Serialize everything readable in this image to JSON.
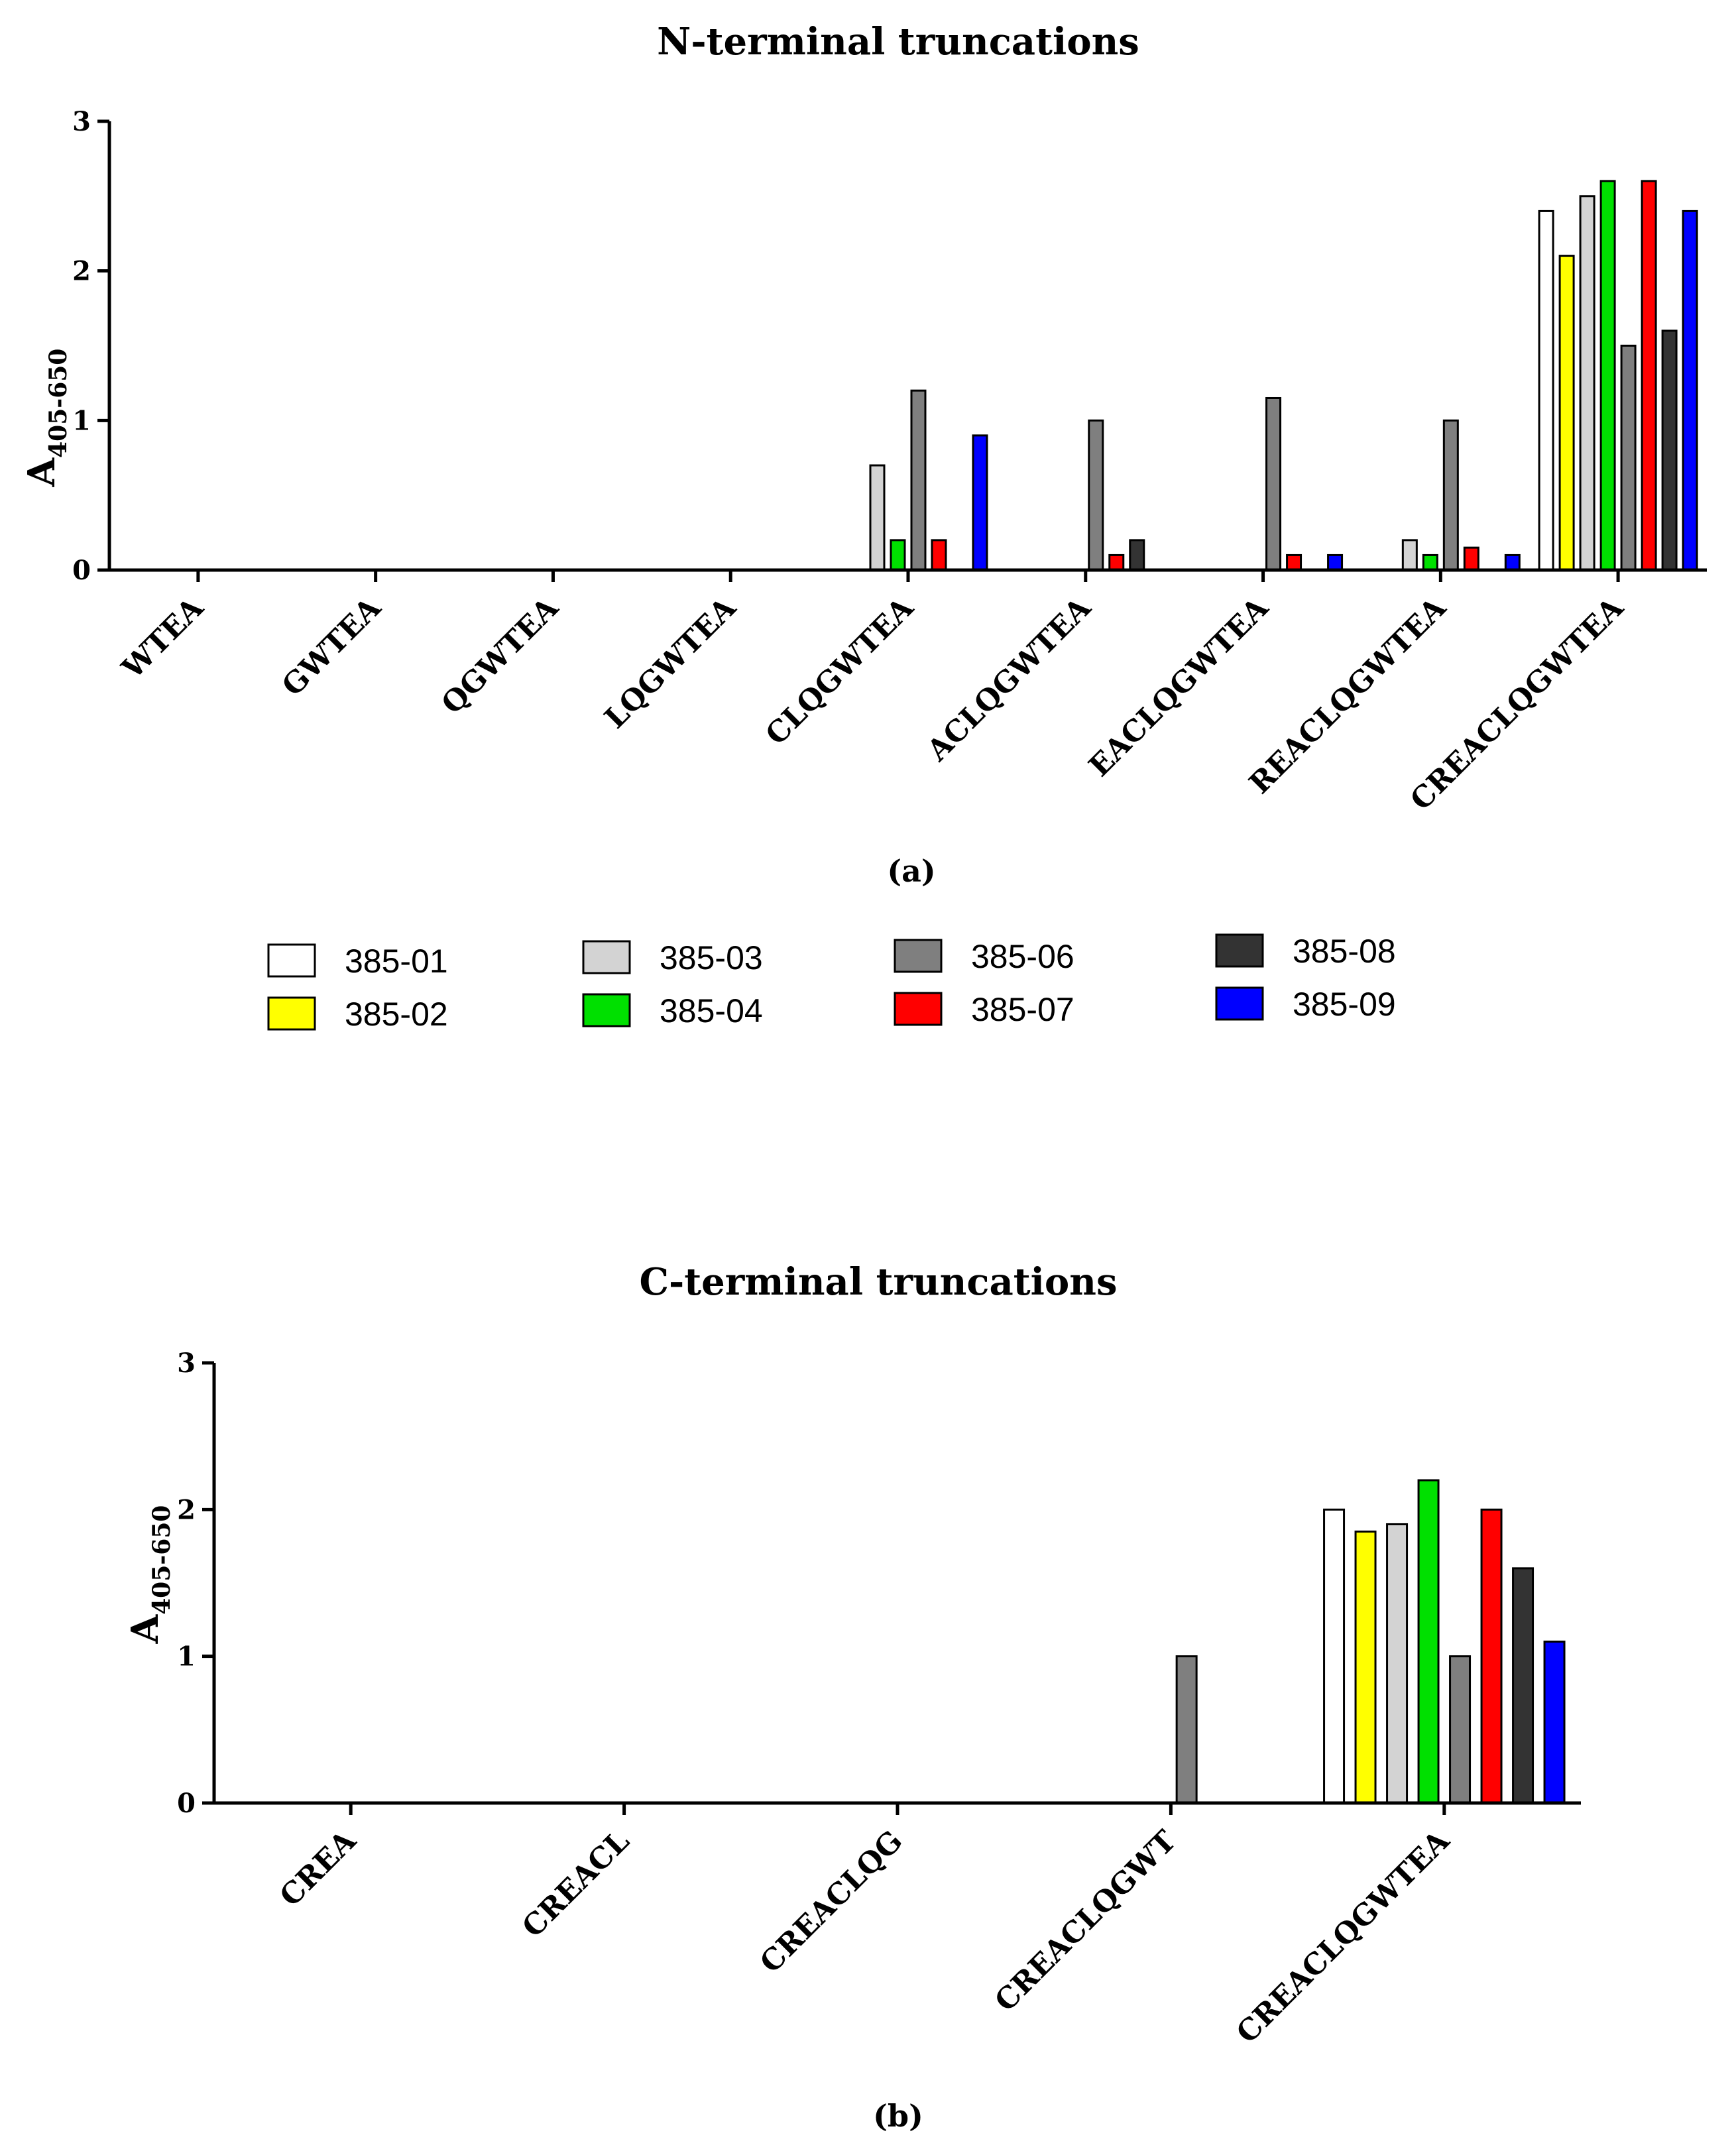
{
  "chart_data": [
    {
      "type": "bar",
      "panel_label": "(a)",
      "title": "N-terminal truncations",
      "ylabel": "A",
      "ylabel_subscript": "405-650",
      "ylim": [
        0,
        3
      ],
      "yticks": [
        "0",
        "1",
        "2",
        "3"
      ],
      "categories": [
        "WTEA",
        "GWTEA",
        "QGWTEA",
        "LQGWTEA",
        "CLQGWTEA",
        "ACLQGWTEA",
        "EACLQGWTEA",
        "REACLQGWTEA",
        "CREACLQGWTEA"
      ],
      "series": [
        {
          "name": "385-01",
          "color": "#ffffff",
          "values": [
            0,
            0,
            0,
            0,
            0,
            0,
            0,
            0,
            2.4
          ]
        },
        {
          "name": "385-02",
          "color": "#ffff00",
          "values": [
            0,
            0,
            0,
            0,
            0,
            0,
            0,
            0,
            2.1
          ]
        },
        {
          "name": "385-03",
          "color": "#d3d3d3",
          "values": [
            0,
            0,
            0,
            0,
            0.7,
            0,
            0,
            0.2,
            2.5
          ]
        },
        {
          "name": "385-04",
          "color": "#00e000",
          "values": [
            0,
            0,
            0,
            0,
            0.2,
            0,
            0,
            0.1,
            2.6
          ]
        },
        {
          "name": "385-06",
          "color": "#7f7f7f",
          "values": [
            0,
            0,
            0,
            0,
            1.2,
            1.0,
            1.15,
            1.0,
            1.5
          ]
        },
        {
          "name": "385-07",
          "color": "#ff0000",
          "values": [
            0,
            0,
            0,
            0,
            0.2,
            0.1,
            0.1,
            0.15,
            2.6
          ]
        },
        {
          "name": "385-08",
          "color": "#333333",
          "values": [
            0,
            0,
            0,
            0,
            0,
            0.2,
            0,
            0,
            1.6
          ]
        },
        {
          "name": "385-09",
          "color": "#0000ff",
          "values": [
            0,
            0,
            0,
            0,
            0.9,
            0,
            0.1,
            0.1,
            2.4
          ]
        }
      ]
    },
    {
      "type": "bar",
      "panel_label": "(b)",
      "title": "C-terminal truncations",
      "ylabel": "A",
      "ylabel_subscript": "405-650",
      "ylim": [
        0,
        3
      ],
      "yticks": [
        "0",
        "1",
        "2",
        "3"
      ],
      "categories": [
        "CREA",
        "CREACL",
        "CREACLQG",
        "CREACLQGWT",
        "CREACLQGWTEA"
      ],
      "series": [
        {
          "name": "385-01",
          "color": "#ffffff",
          "values": [
            0,
            0,
            0,
            0,
            2.0
          ]
        },
        {
          "name": "385-02",
          "color": "#ffff00",
          "values": [
            0,
            0,
            0,
            0,
            1.85
          ]
        },
        {
          "name": "385-03",
          "color": "#d3d3d3",
          "values": [
            0,
            0,
            0,
            0,
            1.9
          ]
        },
        {
          "name": "385-04",
          "color": "#00e000",
          "values": [
            0,
            0,
            0,
            0,
            2.2
          ]
        },
        {
          "name": "385-06",
          "color": "#7f7f7f",
          "values": [
            0,
            0,
            0,
            1.0,
            1.0
          ]
        },
        {
          "name": "385-07",
          "color": "#ff0000",
          "values": [
            0,
            0,
            0,
            0,
            2.0
          ]
        },
        {
          "name": "385-08",
          "color": "#333333",
          "values": [
            0,
            0,
            0,
            0,
            1.6
          ]
        },
        {
          "name": "385-09",
          "color": "#0000ff",
          "values": [
            0,
            0,
            0,
            0,
            1.1
          ]
        }
      ]
    }
  ],
  "legend": [
    {
      "label": "385-01",
      "color": "#ffffff"
    },
    {
      "label": "385-02",
      "color": "#ffff00"
    },
    {
      "label": "385-03",
      "color": "#d3d3d3"
    },
    {
      "label": "385-04",
      "color": "#00e000"
    },
    {
      "label": "385-06",
      "color": "#7f7f7f"
    },
    {
      "label": "385-07",
      "color": "#ff0000"
    },
    {
      "label": "385-08",
      "color": "#333333"
    },
    {
      "label": "385-09",
      "color": "#0000ff"
    }
  ]
}
